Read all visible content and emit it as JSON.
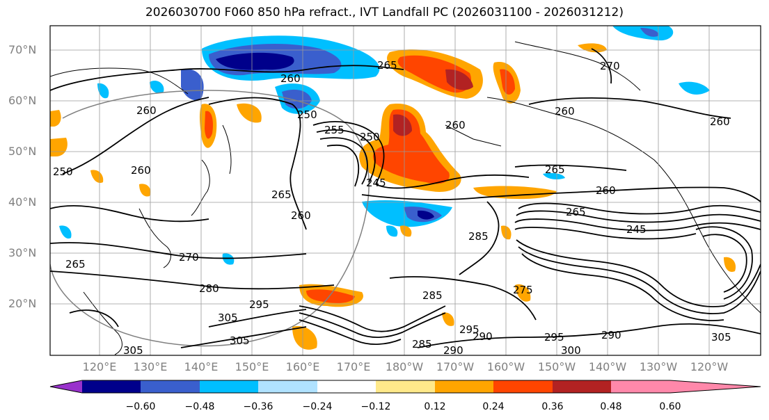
{
  "title": "2026030700 F060 850 hPa refract., IVT Landfall PC (2026031100 - 2026031212)",
  "latitude_labels": [
    "70°N",
    "60°N",
    "50°N",
    "40°N",
    "30°N",
    "20°N"
  ],
  "longitude_labels": [
    "120°E",
    "130°E",
    "140°E",
    "150°E",
    "160°E",
    "170°E",
    "180°W",
    "170°W",
    "160°W",
    "150°W",
    "140°W",
    "130°W",
    "120°W"
  ],
  "colorbar": {
    "ticks": [
      "−0.60",
      "−0.48",
      "−0.36",
      "−0.24",
      "−0.12",
      "0.12",
      "0.24",
      "0.36",
      "0.48",
      "0.60"
    ],
    "colors": [
      "#9932cc",
      "#00008b",
      "#3a5fcd",
      "#00bfff",
      "#b0e2ff",
      "#ffffff",
      "#ffe98a",
      "#ffa500",
      "#ff4500",
      "#b22222",
      "#ff88aa"
    ]
  },
  "contour_labels": [
    {
      "text": "260"
    },
    {
      "text": "265"
    },
    {
      "text": "270"
    },
    {
      "text": "260"
    },
    {
      "text": "250"
    },
    {
      "text": "255"
    },
    {
      "text": "250"
    },
    {
      "text": "260"
    },
    {
      "text": "260"
    },
    {
      "text": "260"
    },
    {
      "text": "250"
    },
    {
      "text": "260"
    },
    {
      "text": "265"
    },
    {
      "text": "245"
    },
    {
      "text": "260"
    },
    {
      "text": "265"
    },
    {
      "text": "245"
    },
    {
      "text": "265"
    },
    {
      "text": "260"
    },
    {
      "text": "285"
    },
    {
      "text": "270"
    },
    {
      "text": "265"
    },
    {
      "text": "280"
    },
    {
      "text": "275"
    },
    {
      "text": "305"
    },
    {
      "text": "295"
    },
    {
      "text": "305"
    },
    {
      "text": "285"
    },
    {
      "text": "290"
    },
    {
      "text": "295"
    },
    {
      "text": "290"
    },
    {
      "text": "300"
    },
    {
      "text": "290"
    },
    {
      "text": "295"
    },
    {
      "text": "305"
    },
    {
      "text": "305"
    },
    {
      "text": "285"
    }
  ]
}
